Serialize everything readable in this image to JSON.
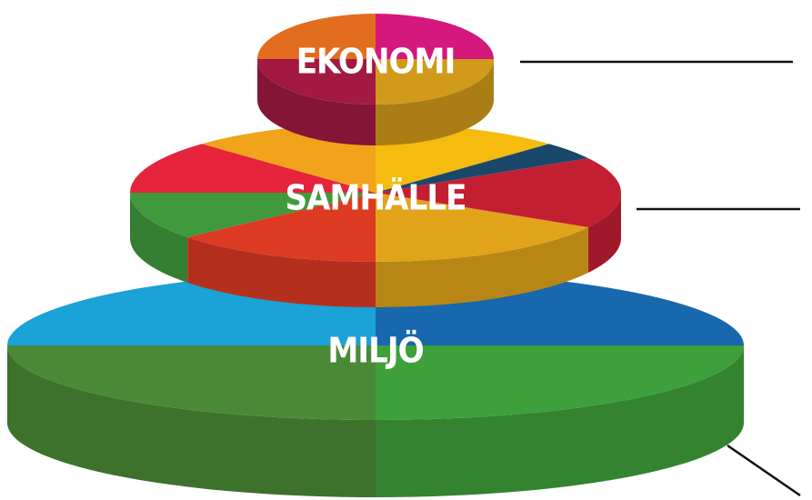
{
  "tiers": [
    {
      "label": "EKONOMI"
    },
    {
      "label": "SAMHÄLLE"
    },
    {
      "label": "MILJÖ"
    }
  ]
}
